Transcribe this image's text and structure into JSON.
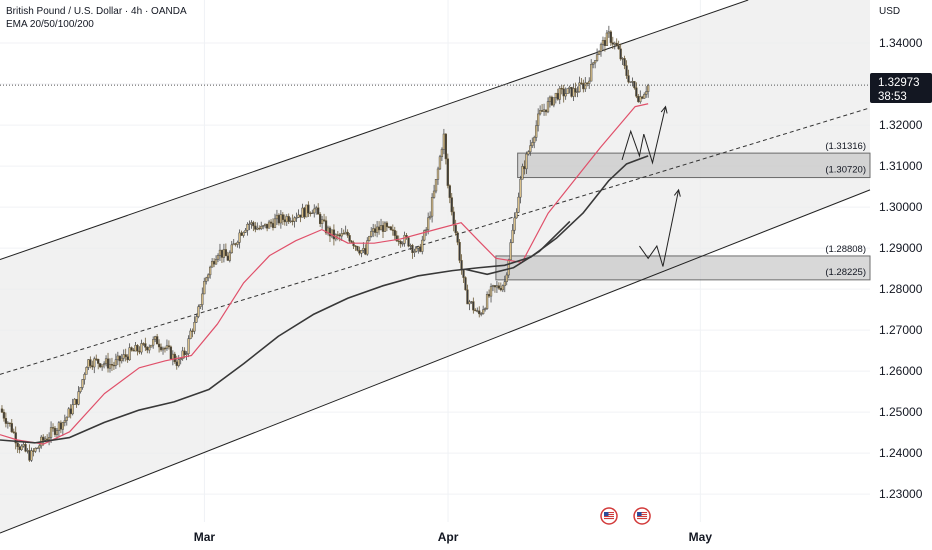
{
  "header": {
    "title": "British Pound / U.S. Dollar · 4h · OANDA",
    "indicator": "EMA 20/50/100/200",
    "currency": "USD"
  },
  "price_tag": {
    "price": "1.32973",
    "countdown": "38:53",
    "value": 1.32973
  },
  "chart_data": {
    "type": "line",
    "title": "British Pound / U.S. Dollar · 4h · OANDA",
    "ylabel": "USD",
    "ylim": [
      1.2232,
      1.3505
    ],
    "x_ticks": [
      "Mar",
      "Apr",
      "May"
    ],
    "y_ticks": [
      "1.34000",
      "1.33000",
      "1.32000",
      "1.31000",
      "1.30000",
      "1.29000",
      "1.28000",
      "1.27000",
      "1.26000",
      "1.25000",
      "1.24000",
      "1.23000"
    ],
    "grid": true,
    "price_path": {
      "x": [
        0,
        0.013,
        0.022,
        0.035,
        0.048,
        0.06,
        0.075,
        0.09,
        0.1,
        0.115,
        0.13,
        0.15,
        0.165,
        0.18,
        0.195,
        0.205,
        0.215,
        0.22,
        0.225,
        0.235,
        0.25,
        0.262,
        0.275,
        0.285,
        0.3,
        0.315,
        0.33,
        0.345,
        0.36,
        0.375,
        0.385,
        0.4,
        0.41,
        0.42,
        0.425,
        0.44,
        0.45,
        0.46,
        0.47,
        0.48,
        0.49,
        0.5,
        0.51,
        0.515,
        0.525,
        0.535,
        0.55,
        0.565,
        0.58,
        0.6,
        0.62,
        0.64,
        0.66,
        0.675,
        0.685,
        0.7,
        0.71,
        0.72,
        0.73,
        0.735,
        0.74,
        0.745
      ],
      "y": [
        1.2508,
        1.2462,
        1.2418,
        1.2392,
        1.2428,
        1.2452,
        1.2482,
        1.2538,
        1.2625,
        1.2622,
        1.2615,
        1.2645,
        1.2658,
        1.2675,
        1.2645,
        1.2618,
        1.2655,
        1.2705,
        1.2715,
        1.2818,
        1.2895,
        1.2875,
        1.2935,
        1.2962,
        1.2945,
        1.2965,
        1.2975,
        1.2985,
        1.2998,
        1.2945,
        1.2925,
        1.2932,
        1.2905,
        1.2885,
        1.2935,
        1.2952,
        1.2935,
        1.2925,
        1.2915,
        1.2885,
        1.2945,
        1.3045,
        1.3178,
        1.3045,
        1.2925,
        1.2785,
        1.2735,
        1.2795,
        1.2815,
        1.3085,
        1.3225,
        1.3275,
        1.3282,
        1.3305,
        1.3375,
        1.3418,
        1.3385,
        1.3325,
        1.3285,
        1.3265,
        1.3282,
        1.3297
      ]
    },
    "ema_20": {
      "x": [
        0,
        0.02,
        0.05,
        0.08,
        0.12,
        0.16,
        0.19,
        0.22,
        0.25,
        0.28,
        0.31,
        0.34,
        0.37,
        0.4,
        0.43,
        0.46,
        0.5,
        0.53,
        0.55,
        0.57,
        0.6,
        0.63,
        0.66,
        0.69,
        0.71,
        0.73,
        0.745
      ],
      "y": [
        1.2445,
        1.2432,
        1.2422,
        1.2452,
        1.2545,
        1.2608,
        1.2625,
        1.2638,
        1.2715,
        1.2815,
        1.2882,
        1.2918,
        1.2945,
        1.2912,
        1.2912,
        1.2922,
        1.2945,
        1.2962,
        1.2918,
        1.2875,
        1.2865,
        1.2985,
        1.3065,
        1.3145,
        1.3195,
        1.3245,
        1.3252
      ]
    },
    "ema_200": {
      "x": [
        0,
        0.04,
        0.08,
        0.12,
        0.16,
        0.2,
        0.24,
        0.28,
        0.32,
        0.36,
        0.4,
        0.44,
        0.48,
        0.52,
        0.55,
        0.58,
        0.61,
        0.64,
        0.67,
        0.7,
        0.72,
        0.745
      ],
      "y": [
        1.2432,
        1.2425,
        1.2438,
        1.2475,
        1.2505,
        1.2525,
        1.2555,
        1.2618,
        1.2685,
        1.2738,
        1.2778,
        1.2808,
        1.2832,
        1.2845,
        1.2852,
        1.2858,
        1.2878,
        1.2925,
        1.2985,
        1.3065,
        1.3105,
        1.3125
      ]
    },
    "ema_extra": {
      "x": [
        0.535,
        0.56,
        0.59,
        0.62,
        0.655
      ],
      "y": [
        1.2848,
        1.2836,
        1.2852,
        1.2892,
        1.2965
      ]
    },
    "channel": {
      "upper": {
        "x": [
          0,
          0.86
        ],
        "y": [
          1.2872,
          1.3505
        ]
      },
      "lower": {
        "x": [
          0,
          1
        ],
        "y": [
          1.2205,
          1.3042
        ]
      },
      "median": {
        "x": [
          0,
          1
        ],
        "y": [
          1.2592,
          1.3242
        ]
      }
    },
    "zones": [
      {
        "top": 1.31316,
        "bottom": 1.3072,
        "x_start": 0.595,
        "top_label": "(1.31316)",
        "bottom_label": "(1.30720)"
      },
      {
        "top": 1.28808,
        "bottom": 1.28225,
        "x_start": 0.57,
        "top_label": "(1.28808)",
        "bottom_label": "(1.28225)"
      }
    ],
    "projections": [
      {
        "x": [
          0.715,
          0.725,
          0.735,
          0.74,
          0.75,
          0.765
        ],
        "y": [
          1.3115,
          1.3185,
          1.3125,
          1.3178,
          1.3108,
          1.3245
        ]
      },
      {
        "x": [
          0.735,
          0.745,
          0.755,
          0.762,
          0.78
        ],
        "y": [
          1.2905,
          1.2875,
          1.2905,
          1.2855,
          1.3042
        ]
      }
    ],
    "event_markers": [
      0.7,
      0.738
    ]
  },
  "colors": {
    "background": "#ffffff",
    "channel_fill": "#ececec",
    "zone_fill": "#c4c4c4",
    "candle_up": "#4a4a4a",
    "candle_down": "#6b5a36",
    "ema_red": "#e0506a",
    "ema_black": "#383838",
    "price_tag": "#131722"
  }
}
